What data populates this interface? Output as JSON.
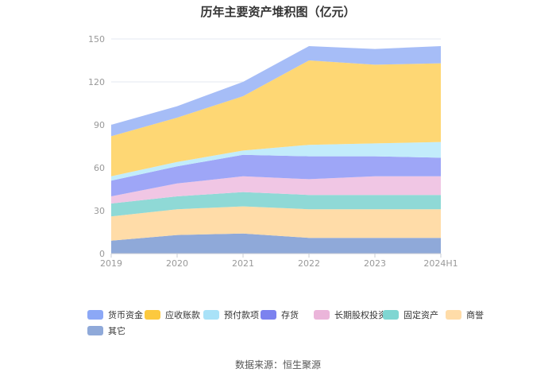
{
  "chart_data": {
    "type": "area",
    "stacked": true,
    "title": "历年主要资产堆积图（亿元）",
    "xlabel": "",
    "ylabel": "",
    "categories": [
      "2019",
      "2020",
      "2021",
      "2022",
      "2023",
      "2024H1"
    ],
    "yticks": [
      0,
      30,
      60,
      90,
      120,
      150
    ],
    "ylim": [
      0,
      150
    ],
    "grid": true,
    "legend_position": "bottom-left",
    "series": [
      {
        "name": "其它",
        "color": "#8fa9d9",
        "values": [
          9,
          13,
          14,
          11,
          11,
          11
        ]
      },
      {
        "name": "商誉",
        "color": "#ffdca8",
        "values": [
          17,
          18,
          19,
          20,
          20,
          20
        ]
      },
      {
        "name": "固定资产",
        "color": "#8fd9d6",
        "values": [
          9,
          9,
          10,
          10,
          10,
          10
        ]
      },
      {
        "name": "长期股权投资",
        "color": "#f0c6e4",
        "values": [
          5,
          9,
          11,
          11,
          13,
          13
        ]
      },
      {
        "name": "存货",
        "color": "#9ea6f7",
        "values": [
          11,
          12,
          15,
          16,
          14,
          13
        ]
      },
      {
        "name": "预付款项",
        "color": "#c2ecfb",
        "values": [
          3,
          3,
          3,
          8,
          9,
          11
        ]
      },
      {
        "name": "应收账款",
        "color": "#fed774",
        "values": [
          28,
          31,
          38,
          59,
          55,
          55
        ]
      },
      {
        "name": "货币资金",
        "color": "#a6bdf7",
        "values": [
          8,
          8,
          10,
          10,
          11,
          12
        ]
      }
    ],
    "legend": [
      {
        "name": "货币资金",
        "color": "#8ca8f6"
      },
      {
        "name": "应收账款",
        "color": "#fcc93e"
      },
      {
        "name": "预付款项",
        "color": "#a9e2f8"
      },
      {
        "name": "存货",
        "color": "#7c82ef"
      },
      {
        "name": "长期股权投资",
        "color": "#ebb5da"
      },
      {
        "name": "固定资产",
        "color": "#7fd6d2"
      },
      {
        "name": "商誉",
        "color": "#ffdca8"
      },
      {
        "name": "其它",
        "color": "#8fa9d9"
      }
    ]
  },
  "source": "数据来源：恒生聚源"
}
